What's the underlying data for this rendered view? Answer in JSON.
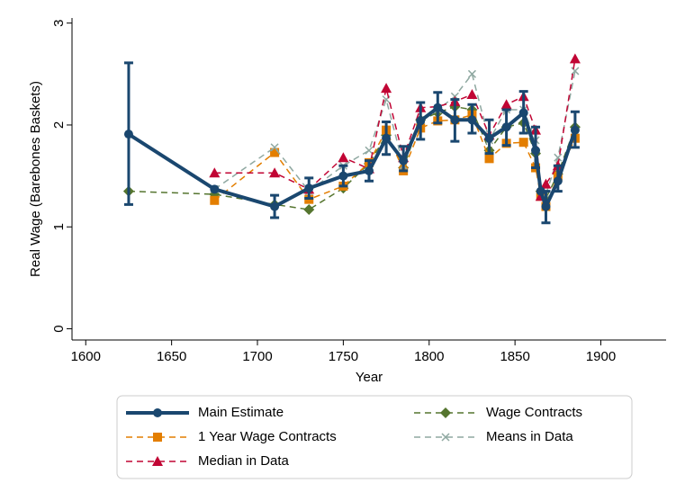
{
  "chart_data": {
    "type": "line",
    "xlabel": "Year",
    "ylabel": "Real Wage (Barebones Baskets)",
    "x": [
      1625,
      1675,
      1710,
      1730,
      1750,
      1765,
      1775,
      1785,
      1795,
      1805,
      1815,
      1825,
      1835,
      1845,
      1855,
      1862,
      1865,
      1868,
      1875,
      1885
    ],
    "xlim": [
      1592,
      1938
    ],
    "xticks": [
      1600,
      1650,
      1700,
      1750,
      1800,
      1850,
      1900
    ],
    "ylim": [
      -0.11,
      3.05
    ],
    "yticks": [
      0,
      1,
      2,
      3
    ],
    "series": [
      {
        "name": "Main Estimate",
        "color": "#1a476f",
        "marker": "circle",
        "style": "solid",
        "values": [
          1.91,
          1.37,
          1.2,
          1.38,
          1.5,
          1.55,
          1.87,
          1.65,
          2.04,
          2.17,
          2.05,
          2.05,
          1.87,
          1.98,
          2.12,
          1.75,
          1.35,
          1.2,
          1.45,
          1.95
        ],
        "ci_lower": [
          1.22,
          null,
          1.09,
          1.28,
          1.4,
          1.45,
          1.71,
          1.55,
          1.86,
          2.02,
          1.84,
          1.92,
          1.72,
          1.8,
          1.92,
          1.58,
          null,
          1.04,
          1.35,
          1.78
        ],
        "ci_upper": [
          2.61,
          null,
          1.31,
          1.48,
          1.6,
          1.65,
          2.03,
          1.79,
          2.22,
          2.32,
          2.25,
          2.2,
          2.05,
          2.15,
          2.33,
          1.98,
          null,
          1.35,
          1.6,
          2.13
        ]
      },
      {
        "name": "Wage Contracts",
        "color": "#55752f",
        "marker": "diamond",
        "style": "dash",
        "values": [
          1.35,
          1.32,
          1.22,
          1.17,
          1.38,
          1.62,
          1.9,
          1.58,
          2.05,
          2.12,
          2.18,
          2.15,
          1.75,
          1.98,
          2.02,
          1.72,
          1.35,
          1.28,
          1.52,
          1.98
        ]
      },
      {
        "name": "1 Year Wage Contracts",
        "color": "#e37e00",
        "marker": "square",
        "style": "dash",
        "values": [
          null,
          1.26,
          1.73,
          1.27,
          1.4,
          1.63,
          1.95,
          1.55,
          1.97,
          2.04,
          2.05,
          2.1,
          1.67,
          1.82,
          1.83,
          1.58,
          1.3,
          1.2,
          1.5,
          1.87
        ]
      },
      {
        "name": "Means in Data",
        "color": "#8fa8a1",
        "marker": "x",
        "style": "dash",
        "values": [
          null,
          1.37,
          1.78,
          1.35,
          1.6,
          1.75,
          2.25,
          1.6,
          2.05,
          2.15,
          2.28,
          2.5,
          1.85,
          2.15,
          2.15,
          1.85,
          1.3,
          1.32,
          1.68,
          2.53
        ]
      },
      {
        "name": "Median in Data",
        "color": "#c10534",
        "marker": "triangle",
        "style": "dash",
        "values": [
          null,
          1.53,
          1.53,
          1.37,
          1.68,
          1.57,
          2.36,
          1.68,
          2.17,
          2.18,
          2.23,
          2.3,
          1.9,
          2.2,
          2.28,
          1.95,
          1.3,
          1.42,
          1.6,
          2.65
        ]
      }
    ]
  }
}
